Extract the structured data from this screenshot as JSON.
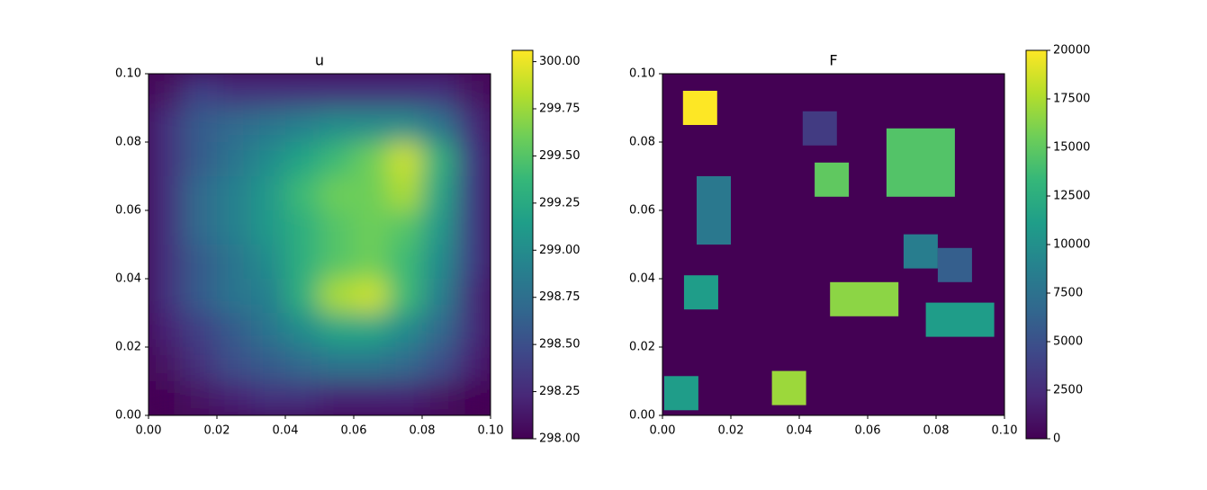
{
  "chart_data": [
    {
      "type": "heatmap",
      "title": "u",
      "colormap": "viridis",
      "x": [
        0.005,
        0.015,
        0.025,
        0.035,
        0.045,
        0.055,
        0.065,
        0.075,
        0.085,
        0.095
      ],
      "y": [
        0.095,
        0.085,
        0.075,
        0.065,
        0.055,
        0.045,
        0.035,
        0.025,
        0.015,
        0.005
      ],
      "z": [
        [
          298.1,
          298.4,
          298.3,
          298.3,
          298.3,
          298.3,
          298.3,
          298.3,
          298.3,
          298.1
        ],
        [
          298.3,
          298.6,
          298.7,
          298.8,
          298.9,
          299.0,
          299.0,
          299.0,
          298.8,
          298.3
        ],
        [
          298.3,
          298.6,
          298.8,
          299.0,
          299.2,
          299.4,
          299.6,
          299.9,
          299.3,
          298.4
        ],
        [
          298.3,
          298.7,
          298.9,
          299.1,
          299.4,
          299.6,
          299.6,
          299.8,
          299.2,
          298.4
        ],
        [
          298.3,
          298.7,
          298.9,
          299.1,
          299.3,
          299.5,
          299.6,
          299.5,
          299.1,
          298.4
        ],
        [
          298.3,
          298.6,
          298.8,
          299.0,
          299.3,
          299.5,
          299.6,
          299.4,
          299.0,
          298.4
        ],
        [
          298.3,
          298.6,
          298.8,
          298.9,
          299.3,
          299.8,
          299.9,
          299.4,
          298.9,
          298.3
        ],
        [
          298.2,
          298.4,
          298.6,
          298.8,
          299.0,
          299.2,
          299.2,
          299.0,
          298.7,
          298.3
        ],
        [
          298.1,
          298.3,
          298.5,
          298.6,
          298.7,
          298.8,
          298.8,
          298.7,
          298.5,
          298.2
        ],
        [
          298.0,
          298.1,
          298.2,
          298.3,
          298.3,
          298.2,
          298.2,
          298.2,
          298.1,
          298.0
        ]
      ],
      "xlim": [
        0,
        0.1
      ],
      "ylim": [
        0,
        0.1
      ],
      "xticks": [
        {
          "value": 0,
          "label": "0.00"
        },
        {
          "value": 0.02,
          "label": "0.02"
        },
        {
          "value": 0.04,
          "label": "0.04"
        },
        {
          "value": 0.06,
          "label": "0.06"
        },
        {
          "value": 0.08,
          "label": "0.08"
        },
        {
          "value": 0.1,
          "label": "0.10"
        }
      ],
      "yticks": [
        {
          "value": 0,
          "label": "0.00"
        },
        {
          "value": 0.02,
          "label": "0.02"
        },
        {
          "value": 0.04,
          "label": "0.04"
        },
        {
          "value": 0.06,
          "label": "0.06"
        },
        {
          "value": 0.08,
          "label": "0.08"
        },
        {
          "value": 0.1,
          "label": "0.10"
        }
      ],
      "clim": [
        298,
        300.06
      ],
      "cticks": [
        {
          "value": 298,
          "label": "298.00"
        },
        {
          "value": 298.25,
          "label": "298.25"
        },
        {
          "value": 298.5,
          "label": "298.50"
        },
        {
          "value": 298.75,
          "label": "298.75"
        },
        {
          "value": 299,
          "label": "299.00"
        },
        {
          "value": 299.25,
          "label": "299.25"
        },
        {
          "value": 299.5,
          "label": "299.50"
        },
        {
          "value": 299.75,
          "label": "299.75"
        },
        {
          "value": 300,
          "label": "300.00"
        }
      ]
    },
    {
      "type": "patches",
      "title": "F",
      "colormap": "viridis",
      "background": 0,
      "patches": [
        {
          "x": [
            0.006,
            0.016
          ],
          "y": [
            0.085,
            0.095
          ],
          "value": 20000
        },
        {
          "x": [
            0.041,
            0.051
          ],
          "y": [
            0.079,
            0.089
          ],
          "value": 3500
        },
        {
          "x": [
            0.0445,
            0.0545
          ],
          "y": [
            0.064,
            0.074
          ],
          "value": 15000
        },
        {
          "x": [
            0.0655,
            0.0855
          ],
          "y": [
            0.064,
            0.084
          ],
          "value": 14500
        },
        {
          "x": [
            0.01,
            0.02
          ],
          "y": [
            0.05,
            0.07
          ],
          "value": 8000
        },
        {
          "x": [
            0.0705,
            0.0805
          ],
          "y": [
            0.043,
            0.053
          ],
          "value": 8500
        },
        {
          "x": [
            0.0805,
            0.0905
          ],
          "y": [
            0.039,
            0.049
          ],
          "value": 6000
        },
        {
          "x": [
            0.0063,
            0.0163
          ],
          "y": [
            0.031,
            0.041
          ],
          "value": 11000
        },
        {
          "x": [
            0.049,
            0.069
          ],
          "y": [
            0.029,
            0.039
          ],
          "value": 16500
        },
        {
          "x": [
            0.077,
            0.097
          ],
          "y": [
            0.023,
            0.033
          ],
          "value": 11000
        },
        {
          "x": [
            0.0005,
            0.0105
          ],
          "y": [
            0.0015,
            0.0115
          ],
          "value": 11000
        },
        {
          "x": [
            0.032,
            0.042
          ],
          "y": [
            0.003,
            0.013
          ],
          "value": 17000
        }
      ],
      "xlim": [
        0,
        0.1
      ],
      "ylim": [
        0,
        0.1
      ],
      "xticks": [
        {
          "value": 0,
          "label": "0.00"
        },
        {
          "value": 0.02,
          "label": "0.02"
        },
        {
          "value": 0.04,
          "label": "0.04"
        },
        {
          "value": 0.06,
          "label": "0.06"
        },
        {
          "value": 0.08,
          "label": "0.08"
        },
        {
          "value": 0.1,
          "label": "0.10"
        }
      ],
      "yticks": [
        {
          "value": 0,
          "label": "0.00"
        },
        {
          "value": 0.02,
          "label": "0.02"
        },
        {
          "value": 0.04,
          "label": "0.04"
        },
        {
          "value": 0.06,
          "label": "0.06"
        },
        {
          "value": 0.08,
          "label": "0.08"
        },
        {
          "value": 0.1,
          "label": "0.10"
        }
      ],
      "clim": [
        0,
        20000
      ],
      "cticks": [
        0,
        2500,
        5000,
        7500,
        10000,
        12500,
        15000,
        17500,
        20000
      ]
    }
  ]
}
